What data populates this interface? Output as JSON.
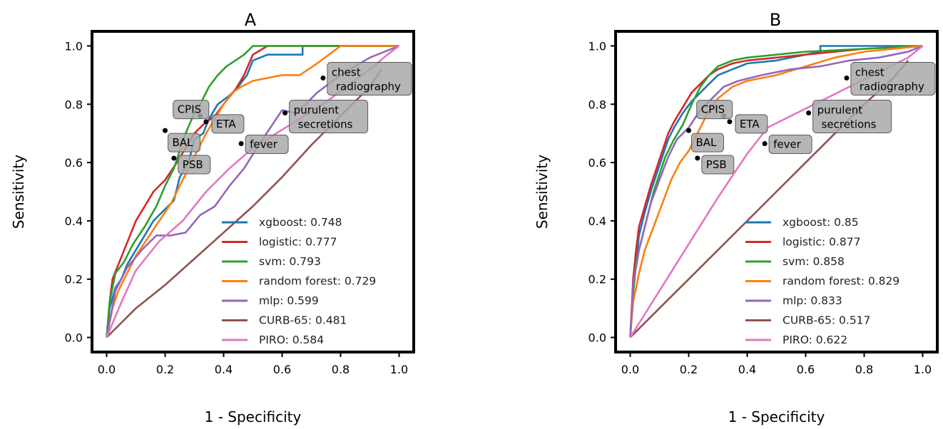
{
  "figure": {
    "background": "#ffffff"
  },
  "chart_data": [
    {
      "type": "line",
      "title": "A",
      "xlabel": "1 - Specificity",
      "ylabel": "Sensitivity",
      "xlim": [
        -0.05,
        1.05
      ],
      "ylim": [
        -0.05,
        1.05
      ],
      "xticks": [
        0.0,
        0.2,
        0.4,
        0.6,
        0.8,
        1.0
      ],
      "yticks": [
        0.0,
        0.2,
        0.4,
        0.6,
        0.8,
        1.0
      ],
      "xtick_labels": [
        "0.0",
        "0.2",
        "0.4",
        "0.6",
        "0.8",
        "1.0"
      ],
      "ytick_labels": [
        "0.0",
        "0.2",
        "0.4",
        "0.6",
        "0.8",
        "1.0"
      ],
      "grid": false,
      "legend_position": "lower-right",
      "series": [
        {
          "name": "xgboost: 0.748",
          "color": "#1f77b4",
          "x": [
            0,
            0.01,
            0.03,
            0.05,
            0.07,
            0.1,
            0.13,
            0.16,
            0.2,
            0.23,
            0.25,
            0.28,
            0.3,
            0.33,
            0.35,
            0.38,
            0.42,
            0.45,
            0.48,
            0.5,
            0.55,
            0.6,
            0.67,
            0.67,
            0.7,
            1.0
          ],
          "y": [
            0,
            0.1,
            0.17,
            0.2,
            0.25,
            0.3,
            0.35,
            0.4,
            0.44,
            0.47,
            0.55,
            0.6,
            0.68,
            0.7,
            0.75,
            0.8,
            0.83,
            0.86,
            0.9,
            0.95,
            0.97,
            0.97,
            0.97,
            1.0,
            1.0,
            1.0
          ]
        },
        {
          "name": "logistic: 0.777",
          "color": "#d62728",
          "x": [
            0,
            0.01,
            0.02,
            0.04,
            0.06,
            0.08,
            0.1,
            0.13,
            0.16,
            0.2,
            0.24,
            0.27,
            0.3,
            0.33,
            0.37,
            0.4,
            0.44,
            0.47,
            0.5,
            0.55,
            1.0
          ],
          "y": [
            0,
            0.12,
            0.2,
            0.25,
            0.3,
            0.35,
            0.4,
            0.45,
            0.5,
            0.54,
            0.6,
            0.65,
            0.7,
            0.73,
            0.76,
            0.8,
            0.85,
            0.9,
            0.97,
            1.0,
            1.0
          ]
        },
        {
          "name": "svm: 0.793",
          "color": "#2ca02c",
          "x": [
            0,
            0.01,
            0.03,
            0.06,
            0.09,
            0.13,
            0.17,
            0.2,
            0.23,
            0.25,
            0.27,
            0.3,
            0.32,
            0.35,
            0.38,
            0.41,
            0.44,
            0.47,
            0.5,
            0.55,
            1.0
          ],
          "y": [
            0,
            0.12,
            0.22,
            0.26,
            0.32,
            0.38,
            0.45,
            0.52,
            0.58,
            0.64,
            0.7,
            0.77,
            0.8,
            0.86,
            0.9,
            0.93,
            0.95,
            0.97,
            1.0,
            1.0,
            1.0
          ]
        },
        {
          "name": "random forest: 0.729",
          "color": "#ff7f0e",
          "x": [
            0,
            0.02,
            0.04,
            0.07,
            0.1,
            0.14,
            0.18,
            0.22,
            0.25,
            0.28,
            0.31,
            0.34,
            0.37,
            0.4,
            0.43,
            0.46,
            0.5,
            0.55,
            0.6,
            0.66,
            0.72,
            0.8,
            1.0
          ],
          "y": [
            0,
            0.1,
            0.16,
            0.22,
            0.28,
            0.34,
            0.4,
            0.46,
            0.52,
            0.58,
            0.64,
            0.7,
            0.75,
            0.8,
            0.84,
            0.86,
            0.88,
            0.89,
            0.9,
            0.9,
            0.94,
            1.0,
            1.0
          ]
        },
        {
          "name": "mlp: 0.599",
          "color": "#9467bd",
          "x": [
            0,
            0.03,
            0.07,
            0.12,
            0.17,
            0.22,
            0.27,
            0.32,
            0.37,
            0.42,
            0.47,
            0.52,
            0.56,
            0.6,
            0.64,
            0.68,
            0.72,
            0.76,
            0.8,
            0.85,
            0.9,
            0.95,
            1.0
          ],
          "y": [
            0,
            0.16,
            0.24,
            0.3,
            0.35,
            0.35,
            0.36,
            0.42,
            0.45,
            0.52,
            0.58,
            0.66,
            0.72,
            0.78,
            0.77,
            0.8,
            0.84,
            0.87,
            0.9,
            0.93,
            0.96,
            0.98,
            1.0
          ]
        },
        {
          "name": "CURB-65: 0.481",
          "color": "#8c564b",
          "x": [
            0,
            0.1,
            0.2,
            0.3,
            0.4,
            0.5,
            0.6,
            0.7,
            0.8,
            0.9,
            0.94
          ],
          "y": [
            0,
            0.1,
            0.18,
            0.27,
            0.36,
            0.45,
            0.55,
            0.66,
            0.76,
            0.86,
            0.92
          ]
        },
        {
          "name": "PIRO: 0.584",
          "color": "#e377c2",
          "x": [
            0,
            0.05,
            0.1,
            0.18,
            0.26,
            0.34,
            0.42,
            0.5,
            0.58,
            0.66,
            0.74,
            0.82,
            0.9,
            0.96,
            1.0
          ],
          "y": [
            0,
            0.12,
            0.23,
            0.33,
            0.4,
            0.5,
            0.58,
            0.65,
            0.7,
            0.75,
            0.8,
            0.86,
            0.92,
            0.97,
            1.0
          ]
        }
      ],
      "annotations": [
        {
          "text": "CPIS",
          "x": 0.32,
          "y": 0.76
        },
        {
          "text": "ETA",
          "x": 0.34,
          "y": 0.74
        },
        {
          "text": "BAL",
          "x": 0.2,
          "y": 0.71
        },
        {
          "text": "PSB",
          "x": 0.23,
          "y": 0.615
        },
        {
          "text": "fever",
          "x": 0.46,
          "y": 0.665
        },
        {
          "text": "purulent secretions",
          "x": 0.61,
          "y": 0.77
        },
        {
          "text": "chest radiography",
          "x": 0.74,
          "y": 0.89
        }
      ]
    },
    {
      "type": "line",
      "title": "B",
      "xlabel": "1 - Specificity",
      "ylabel": "Sensitivity",
      "xlim": [
        -0.05,
        1.05
      ],
      "ylim": [
        -0.05,
        1.05
      ],
      "xticks": [
        0.0,
        0.2,
        0.4,
        0.6,
        0.8,
        1.0
      ],
      "yticks": [
        0.0,
        0.2,
        0.4,
        0.6,
        0.8,
        1.0
      ],
      "xtick_labels": [
        "0.0",
        "0.2",
        "0.4",
        "0.6",
        "0.8",
        "1.0"
      ],
      "ytick_labels": [
        "0.0",
        "0.2",
        "0.4",
        "0.6",
        "0.8",
        "1.0"
      ],
      "grid": false,
      "legend_position": "lower-right",
      "series": [
        {
          "name": "xgboost: 0.85",
          "color": "#1f77b4",
          "x": [
            0,
            0.01,
            0.02,
            0.03,
            0.05,
            0.07,
            0.09,
            0.11,
            0.13,
            0.15,
            0.18,
            0.21,
            0.24,
            0.27,
            0.3,
            0.35,
            0.4,
            0.5,
            0.6,
            0.65,
            0.65,
            0.8,
            1.0
          ],
          "y": [
            0,
            0.15,
            0.25,
            0.35,
            0.43,
            0.5,
            0.56,
            0.62,
            0.68,
            0.72,
            0.77,
            0.81,
            0.84,
            0.87,
            0.9,
            0.92,
            0.94,
            0.95,
            0.97,
            0.98,
            1.0,
            1.0,
            1.0
          ]
        },
        {
          "name": "logistic: 0.877",
          "color": "#d62728",
          "x": [
            0,
            0.01,
            0.02,
            0.03,
            0.05,
            0.07,
            0.09,
            0.11,
            0.13,
            0.15,
            0.18,
            0.21,
            0.24,
            0.27,
            0.3,
            0.35,
            0.4,
            0.5,
            0.6,
            0.8,
            1.0
          ],
          "y": [
            0,
            0.2,
            0.3,
            0.38,
            0.45,
            0.52,
            0.58,
            0.64,
            0.7,
            0.74,
            0.79,
            0.84,
            0.87,
            0.9,
            0.92,
            0.94,
            0.95,
            0.96,
            0.97,
            0.99,
            1.0
          ]
        },
        {
          "name": "svm: 0.858",
          "color": "#2ca02c",
          "x": [
            0,
            0.01,
            0.02,
            0.04,
            0.06,
            0.08,
            0.1,
            0.12,
            0.15,
            0.18,
            0.21,
            0.24,
            0.27,
            0.3,
            0.35,
            0.4,
            0.5,
            0.6,
            0.8,
            1.0
          ],
          "y": [
            0,
            0.16,
            0.26,
            0.34,
            0.42,
            0.5,
            0.56,
            0.62,
            0.68,
            0.73,
            0.8,
            0.86,
            0.9,
            0.93,
            0.95,
            0.96,
            0.97,
            0.98,
            0.99,
            1.0
          ]
        },
        {
          "name": "random forest: 0.829",
          "color": "#ff7f0e",
          "x": [
            0,
            0.01,
            0.03,
            0.05,
            0.08,
            0.11,
            0.14,
            0.17,
            0.2,
            0.23,
            0.26,
            0.3,
            0.35,
            0.4,
            0.5,
            0.6,
            0.7,
            0.8,
            1.0
          ],
          "y": [
            0,
            0.12,
            0.22,
            0.3,
            0.38,
            0.46,
            0.54,
            0.6,
            0.64,
            0.7,
            0.76,
            0.82,
            0.86,
            0.88,
            0.9,
            0.93,
            0.96,
            0.98,
            1.0
          ]
        },
        {
          "name": "mlp: 0.833",
          "color": "#9467bd",
          "x": [
            0,
            0.01,
            0.03,
            0.05,
            0.07,
            0.1,
            0.13,
            0.16,
            0.2,
            0.24,
            0.28,
            0.32,
            0.37,
            0.45,
            0.55,
            0.65,
            0.75,
            0.85,
            0.95,
            1.0
          ],
          "y": [
            0,
            0.18,
            0.3,
            0.38,
            0.46,
            0.54,
            0.62,
            0.68,
            0.72,
            0.78,
            0.82,
            0.86,
            0.88,
            0.9,
            0.92,
            0.93,
            0.95,
            0.96,
            0.98,
            1.0
          ]
        },
        {
          "name": "CURB-65: 0.517",
          "color": "#8c564b",
          "x": [
            0,
            0.1,
            0.2,
            0.3,
            0.4,
            0.5,
            0.6,
            0.7,
            0.8,
            0.9,
            0.95
          ],
          "y": [
            0,
            0.1,
            0.2,
            0.3,
            0.4,
            0.5,
            0.6,
            0.7,
            0.8,
            0.89,
            0.95
          ]
        },
        {
          "name": "PIRO: 0.622",
          "color": "#e377c2",
          "x": [
            0,
            0.1,
            0.2,
            0.3,
            0.4,
            0.47,
            0.55,
            0.65,
            0.75,
            0.85,
            0.95,
            1.0
          ],
          "y": [
            0,
            0.16,
            0.32,
            0.48,
            0.63,
            0.72,
            0.76,
            0.81,
            0.86,
            0.91,
            0.96,
            1.0
          ]
        }
      ],
      "annotations": [
        {
          "text": "CPIS",
          "x": 0.32,
          "y": 0.76
        },
        {
          "text": "ETA",
          "x": 0.34,
          "y": 0.74
        },
        {
          "text": "BAL",
          "x": 0.2,
          "y": 0.71
        },
        {
          "text": "PSB",
          "x": 0.23,
          "y": 0.615
        },
        {
          "text": "fever",
          "x": 0.46,
          "y": 0.665
        },
        {
          "text": "purulent secretions",
          "x": 0.61,
          "y": 0.77
        },
        {
          "text": "chest radiography",
          "x": 0.74,
          "y": 0.89
        }
      ]
    }
  ]
}
